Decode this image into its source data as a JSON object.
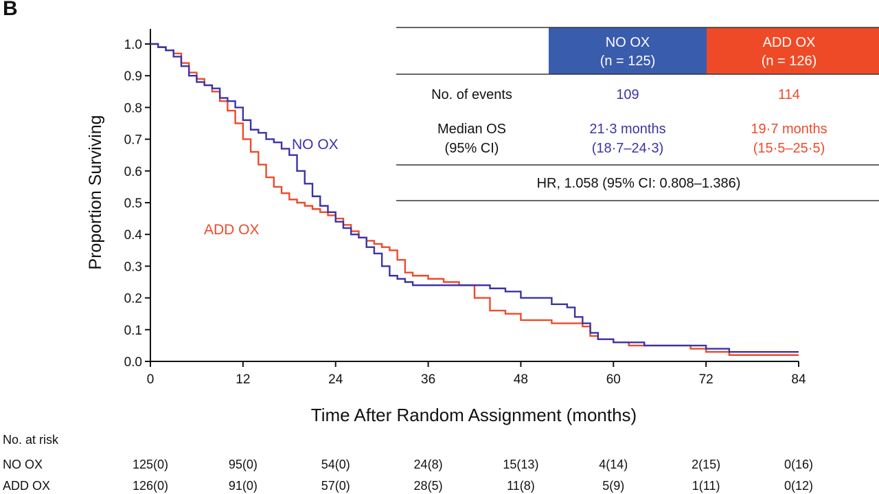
{
  "panel_label": "B",
  "colors": {
    "no_ox": "#3b33a4",
    "add_ox": "#ee4a2a",
    "no_ox_fill": "#3a5cad",
    "add_ox_fill": "#ef4a27"
  },
  "chart_data": {
    "type": "line",
    "xlabel": "Time After Random Assignment (months)",
    "ylabel": "Proportion Surviving",
    "xlim": [
      0,
      84
    ],
    "ylim": [
      0,
      1.0
    ],
    "x_ticks": [
      "0",
      "12",
      "24",
      "36",
      "48",
      "60",
      "72",
      "84"
    ],
    "y_ticks": [
      "0.0",
      "0.1",
      "0.2",
      "0.3",
      "0.4",
      "0.5",
      "0.6",
      "0.7",
      "0.8",
      "0.9",
      "1.0"
    ],
    "grid": false,
    "legend": "inline labels",
    "series": [
      {
        "name": "NO OX",
        "label_text": "NO OX",
        "color": "#3b33a4",
        "x": [
          0,
          1,
          2,
          3,
          4,
          5,
          6,
          7,
          8,
          9,
          10,
          11,
          12,
          13,
          14,
          15,
          16,
          17,
          18,
          19,
          20,
          21,
          22,
          23,
          24,
          25,
          26,
          27,
          28,
          29,
          30,
          31,
          32,
          33,
          34,
          36,
          38,
          40,
          42,
          43,
          44,
          46,
          48,
          50,
          52,
          54,
          55,
          56,
          57,
          58,
          60,
          62,
          64,
          66,
          68,
          70,
          72,
          75,
          78,
          81,
          84
        ],
        "y": [
          1.0,
          0.99,
          0.98,
          0.96,
          0.93,
          0.9,
          0.88,
          0.87,
          0.86,
          0.83,
          0.82,
          0.8,
          0.76,
          0.73,
          0.72,
          0.7,
          0.69,
          0.67,
          0.65,
          0.6,
          0.56,
          0.52,
          0.49,
          0.47,
          0.44,
          0.42,
          0.4,
          0.39,
          0.36,
          0.34,
          0.3,
          0.27,
          0.26,
          0.25,
          0.24,
          0.24,
          0.24,
          0.24,
          0.24,
          0.24,
          0.23,
          0.22,
          0.2,
          0.2,
          0.18,
          0.17,
          0.14,
          0.12,
          0.09,
          0.07,
          0.06,
          0.06,
          0.05,
          0.05,
          0.05,
          0.05,
          0.04,
          0.03,
          0.03,
          0.03,
          0.03
        ]
      },
      {
        "name": "ADD OX",
        "label_text": "ADD OX",
        "color": "#ee4a2a",
        "x": [
          0,
          1,
          2,
          3,
          4,
          5,
          6,
          7,
          8,
          9,
          10,
          11,
          12,
          13,
          14,
          15,
          16,
          17,
          18,
          19,
          20,
          21,
          22,
          23,
          24,
          25,
          26,
          27,
          28,
          29,
          30,
          31,
          32,
          33,
          34,
          36,
          38,
          40,
          42,
          44,
          46,
          48,
          50,
          52,
          54,
          56,
          57,
          58,
          60,
          62,
          64,
          66,
          68,
          70,
          72,
          75,
          78,
          81,
          84
        ],
        "y": [
          1.0,
          0.99,
          0.98,
          0.97,
          0.94,
          0.91,
          0.89,
          0.87,
          0.85,
          0.82,
          0.79,
          0.75,
          0.7,
          0.66,
          0.62,
          0.58,
          0.55,
          0.53,
          0.51,
          0.5,
          0.49,
          0.48,
          0.47,
          0.46,
          0.45,
          0.43,
          0.41,
          0.39,
          0.38,
          0.37,
          0.36,
          0.35,
          0.32,
          0.28,
          0.27,
          0.26,
          0.25,
          0.24,
          0.2,
          0.16,
          0.15,
          0.13,
          0.13,
          0.12,
          0.12,
          0.11,
          0.08,
          0.07,
          0.06,
          0.05,
          0.05,
          0.05,
          0.05,
          0.04,
          0.03,
          0.02,
          0.02,
          0.02,
          0.02
        ]
      }
    ]
  },
  "summary_table": {
    "header_no_ox": "NO OX",
    "header_no_ox_n": "(n = 125)",
    "header_add_ox": "ADD OX",
    "header_add_ox_n": "(n = 126)",
    "events_label": "No. of events",
    "events_no_ox": "109",
    "events_add_ox": "114",
    "median_label": "Median OS",
    "median_ci_label": "(95% CI)",
    "median_no_ox": "21·3 months",
    "median_no_ox_ci": "(18·7–24·3)",
    "median_add_ox": "19·7 months",
    "median_add_ox_ci": "(15·5–25·5)",
    "hr_text": "HR, 1.058 (95% CI: 0.808–1.386)"
  },
  "risk_table": {
    "title": "No. at risk",
    "rows": [
      {
        "label": "NO OX",
        "values": [
          "125(0)",
          "95(0)",
          "54(0)",
          "24(8)",
          "15(13)",
          "4(14)",
          "2(15)",
          "0(16)"
        ]
      },
      {
        "label": "ADD OX",
        "values": [
          "126(0)",
          "91(0)",
          "57(0)",
          "28(5)",
          "11(8)",
          "5(9)",
          "1(11)",
          "0(12)"
        ]
      }
    ]
  }
}
